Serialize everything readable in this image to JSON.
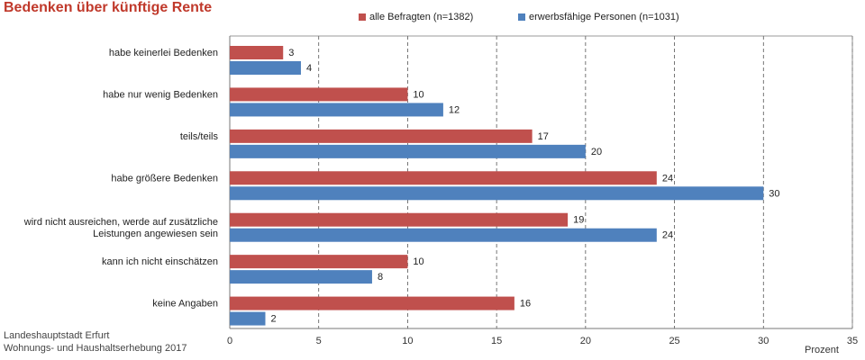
{
  "header": {
    "title": "Bedenken über künftige Rente"
  },
  "footer": {
    "line1": "Landeshauptstadt Erfurt",
    "line2": "Wohnungs- und Haushaltserhebung 2017"
  },
  "colors": {
    "series1": "#c0504d",
    "series2": "#4f81bd",
    "title": "#c0392b"
  },
  "chart_data": {
    "type": "bar",
    "orientation": "horizontal",
    "title": "Bedenken über künftige Rente",
    "xlabel": "Prozent",
    "ylabel": "",
    "xlim": [
      0,
      35
    ],
    "xticks": [
      0,
      5,
      10,
      15,
      20,
      25,
      30,
      35
    ],
    "grid": "vertical dashed",
    "legend_position": "top",
    "categories": [
      [
        "habe keinerlei Bedenken"
      ],
      [
        "habe nur wenig Bedenken"
      ],
      [
        "teils/teils"
      ],
      [
        "habe größere Bedenken"
      ],
      [
        "wird nicht ausreichen, werde auf zusätzliche",
        "Leistungen angewiesen sein"
      ],
      [
        "kann ich nicht einschätzen"
      ],
      [
        "keine Angaben"
      ]
    ],
    "series": [
      {
        "name": "alle Befragten (n=1382)",
        "values": [
          3,
          10,
          17,
          24,
          19,
          10,
          16
        ],
        "labels": [
          "3",
          "10",
          "17",
          "24",
          "19",
          "10",
          "16"
        ]
      },
      {
        "name": "erwerbsfähige Personen (n=1031)",
        "values": [
          4,
          12,
          20,
          30,
          24,
          8,
          2
        ],
        "labels": [
          "4",
          "12",
          "20",
          "30",
          "24",
          "8",
          "2"
        ]
      }
    ]
  }
}
